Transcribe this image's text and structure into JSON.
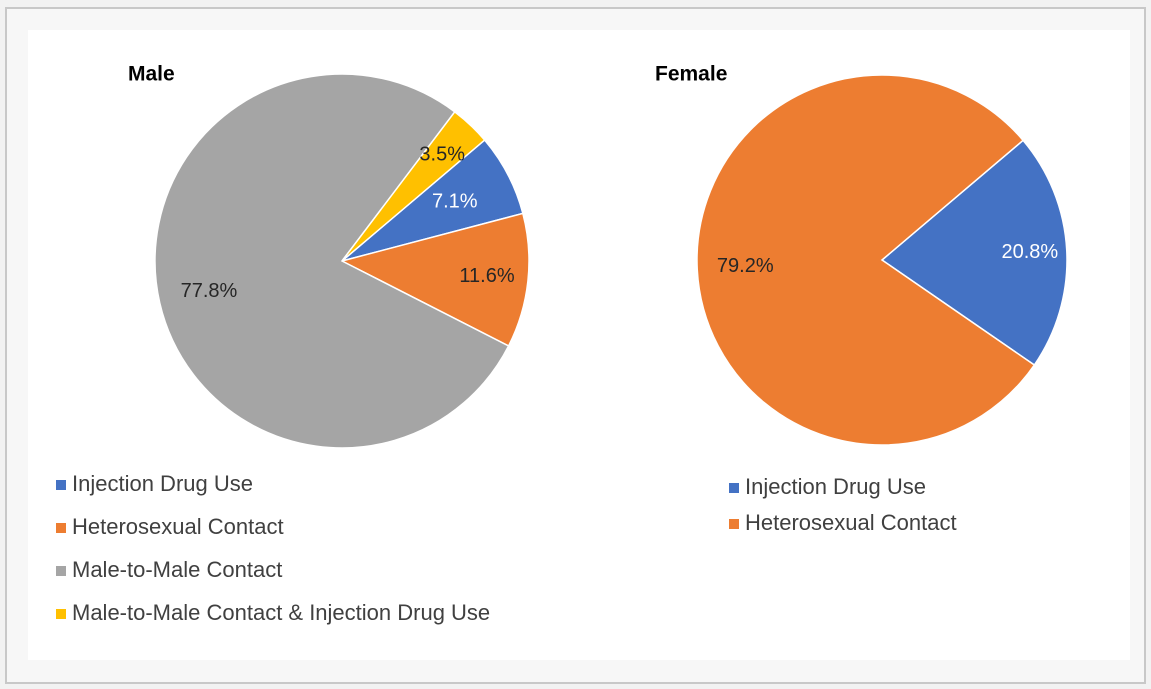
{
  "chart_data": [
    {
      "type": "pie",
      "title": "Male",
      "categories": [
        "Injection Drug Use",
        "Heterosexual Contact",
        "Male-to-Male Contact",
        "Male-to-Male Contact & Injection Drug Use"
      ],
      "values": [
        7.1,
        11.6,
        77.8,
        3.5
      ],
      "value_labels": [
        "7.1%",
        "11.6%",
        "77.8%",
        "3.5%"
      ],
      "colors": [
        "#4472c4",
        "#ed7d31",
        "#a5a5a5",
        "#ffc000"
      ]
    },
    {
      "type": "pie",
      "title": "Female",
      "categories": [
        "Injection Drug Use",
        "Heterosexual Contact"
      ],
      "values": [
        20.8,
        79.2
      ],
      "value_labels": [
        "20.8%",
        "79.2%"
      ],
      "colors": [
        "#4472c4",
        "#ed7d31"
      ]
    }
  ]
}
